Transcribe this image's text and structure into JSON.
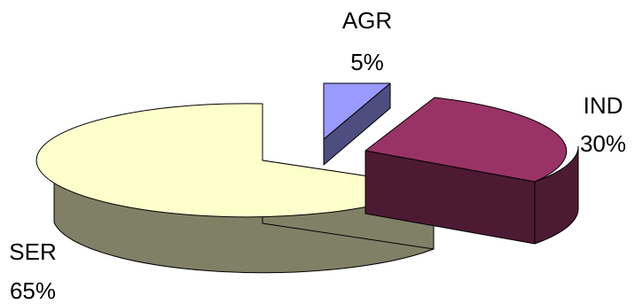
{
  "chart_data": {
    "type": "pie",
    "three_d": true,
    "categories": [
      "AGR",
      "IND",
      "SER"
    ],
    "values": [
      5,
      30,
      65
    ],
    "value_labels": [
      "5%",
      "30%",
      "65%"
    ],
    "colors": {
      "AGR": {
        "top": "#9999ff",
        "side": "#4d4d80"
      },
      "IND": {
        "top": "#993366",
        "side": "#4d1a33"
      },
      "SER": {
        "top": "#ffffcc",
        "side": "#808066"
      }
    },
    "legend": "none",
    "exploded": true
  }
}
